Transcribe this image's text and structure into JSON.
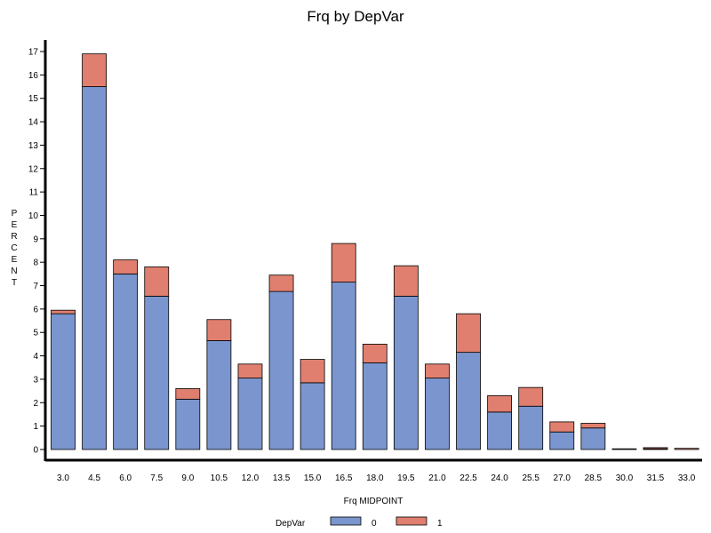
{
  "chart_data": {
    "type": "bar",
    "stacked": true,
    "title": "Frq by DepVar",
    "xlabel": "Frq MIDPOINT",
    "ylabel": "PERCENT",
    "ylim": [
      0,
      17
    ],
    "yticks": [
      "0",
      "1",
      "2",
      "3",
      "4",
      "5",
      "6",
      "7",
      "8",
      "9",
      "10",
      "11",
      "12",
      "13",
      "14",
      "15",
      "16",
      "17"
    ],
    "categories": [
      "3.0",
      "4.5",
      "6.0",
      "7.5",
      "9.0",
      "10.5",
      "12.0",
      "13.5",
      "15.0",
      "16.5",
      "18.0",
      "19.5",
      "21.0",
      "22.5",
      "24.0",
      "25.5",
      "27.0",
      "28.5",
      "30.0",
      "31.5",
      "33.0"
    ],
    "series": [
      {
        "name": "0",
        "color": "#7b96ce",
        "values": [
          5.8,
          15.5,
          7.5,
          6.55,
          2.15,
          4.65,
          3.05,
          6.75,
          2.85,
          7.15,
          3.7,
          6.55,
          3.05,
          4.15,
          1.6,
          1.85,
          0.75,
          0.92,
          0.03,
          0.03,
          0.0
        ]
      },
      {
        "name": "1",
        "color": "#e07f6f",
        "values": [
          0.15,
          1.4,
          0.6,
          1.25,
          0.45,
          0.9,
          0.6,
          0.7,
          1.0,
          1.65,
          0.8,
          1.3,
          0.6,
          1.65,
          0.7,
          0.8,
          0.43,
          0.2,
          0.0,
          0.05,
          0.05
        ]
      }
    ],
    "legend": {
      "title": "DepVar",
      "position": "bottom",
      "entries": [
        "0",
        "1"
      ]
    }
  }
}
